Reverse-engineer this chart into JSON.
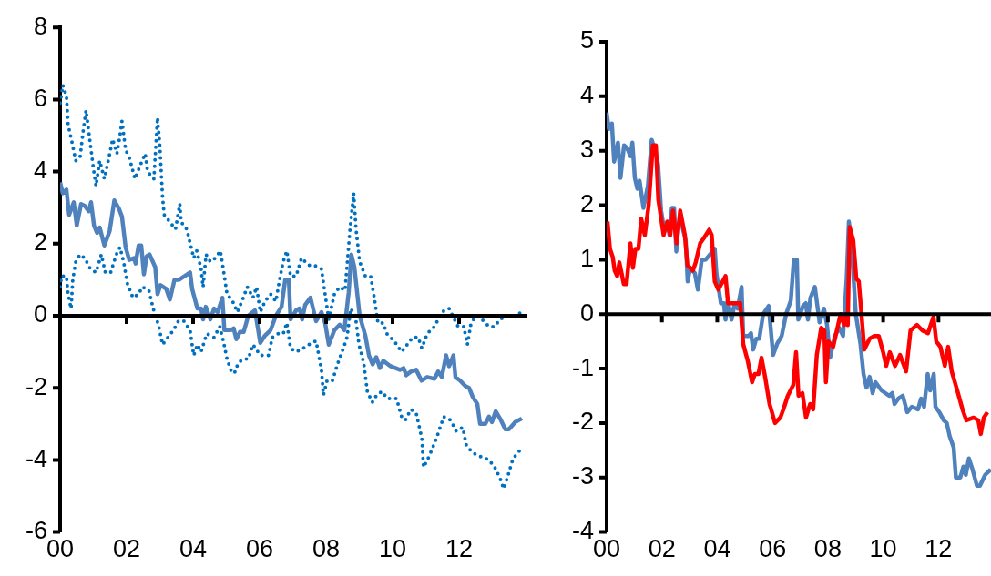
{
  "chart_data": [
    {
      "type": "line",
      "xlim": [
        2000,
        2014
      ],
      "xticks": [
        {
          "value": 2000,
          "label": "00"
        },
        {
          "value": 2002,
          "label": "02"
        },
        {
          "value": 2004,
          "label": "04"
        },
        {
          "value": 2006,
          "label": "06"
        },
        {
          "value": 2008,
          "label": "08"
        },
        {
          "value": 2010,
          "label": "10"
        },
        {
          "value": 2012,
          "label": "12"
        }
      ],
      "ylim": [
        -6,
        8
      ],
      "yticks": [
        -6,
        -4,
        -2,
        0,
        2,
        4,
        6,
        8
      ],
      "ref_lines": [
        {
          "axis": "y",
          "value": 0,
          "color": "#000000"
        }
      ],
      "grid": false,
      "legend": false,
      "marker": "none",
      "series": [
        {
          "color": "#0070c0",
          "line_style": "dotted",
          "x": [
            2000,
            2000.08,
            2000.19,
            2000.24,
            2000.36,
            2000.47,
            2000.6,
            2000.69,
            2000.78,
            2000.89,
            2001,
            2001.08,
            2001.19,
            2001.33,
            2001.47,
            2001.58,
            2001.71,
            2001.8,
            2001.86,
            2001.97,
            2002.08,
            2002.25,
            2002.42,
            2002.56,
            2002.63,
            2002.82,
            2002.93,
            2003,
            2003.08,
            2003.13,
            2003.3,
            2003.47,
            2003.6,
            2003.64,
            2003.81,
            2003.94,
            2004.02,
            2004.11,
            2004.24,
            2004.3,
            2004.39,
            2004.52,
            2004.67,
            2004.82,
            2004.94,
            2005.02,
            2005.19,
            2005.33,
            2005.47,
            2005.63,
            2005.8,
            2005.91,
            2006.02,
            2006.16,
            2006.33,
            2006.49,
            2006.6,
            2006.71,
            2006.82,
            2006.93,
            2007.1,
            2007.26,
            2007.48,
            2007.64,
            2007.86,
            2007.97,
            2008.08,
            2008.25,
            2008.41,
            2008.57,
            2008.72,
            2008.83,
            2008.9,
            2009.01,
            2009.18,
            2009.34,
            2009.45,
            2009.56,
            2009.72,
            2009.83,
            2010.05,
            2010.27,
            2010.44,
            2010.6,
            2010.77,
            2010.88,
            2011.04,
            2011.26,
            2011.48,
            2011.7,
            2011.86,
            2011.97,
            2012.14,
            2012.25,
            2012.36,
            2012.52,
            2012.69,
            2012.9,
            2013.07,
            2013.23,
            2013.45,
            2013.67,
            2013.89
          ],
          "values": [
            5.9,
            6.4,
            6.1,
            5.3,
            4.8,
            4.3,
            4.4,
            5.1,
            5.7,
            4.9,
            4.1,
            3.6,
            4.3,
            3.8,
            4.4,
            4.9,
            4.5,
            5,
            5.4,
            4.6,
            4.4,
            3.8,
            4.2,
            4.5,
            4,
            3.8,
            5.5,
            4.7,
            3.3,
            2.8,
            2.6,
            2.4,
            3.1,
            2.6,
            2.4,
            1.9,
            1.6,
            1.8,
            1.3,
            0.8,
            1.7,
            1.5,
            1.6,
            1.8,
            1.1,
            0.6,
            0.4,
            0.1,
            0.4,
            0.8,
            0.5,
            0.8,
            0.1,
            0.4,
            0.6,
            0.4,
            1,
            1.5,
            1.8,
            1.1,
            1.1,
            1.6,
            1.4,
            1.4,
            1.3,
            0.6,
            -0.1,
            0.6,
            0.8,
            0.7,
            2.4,
            3.4,
            2.4,
            1.5,
            1.1,
            1.1,
            0.5,
            -0.2,
            -0.2,
            -0.5,
            -0.7,
            -1,
            -0.8,
            -0.6,
            -0.6,
            -0.9,
            -0.5,
            -0.3,
            0.1,
            0.2,
            -0.1,
            -0.3,
            -0.3,
            -0.8,
            -0.2,
            0,
            -0.1,
            -0.3,
            -0.3,
            -0.1,
            0,
            0,
            0.1
          ]
        },
        {
          "color": "#4f81bd",
          "line_style": "solid",
          "x": [
            2000,
            2000.08,
            2000.19,
            2000.27,
            2000.41,
            2000.5,
            2000.63,
            2000.74,
            2000.86,
            2000.93,
            2001.02,
            2001.11,
            2001.19,
            2001.33,
            2001.49,
            2001.63,
            2001.78,
            2001.86,
            2001.97,
            2002.08,
            2002.22,
            2002.27,
            2002.36,
            2002.44,
            2002.52,
            2002.6,
            2002.69,
            2002.86,
            2002.93,
            2003.02,
            2003.19,
            2003.3,
            2003.44,
            2003.58,
            2003.91,
            2003.97,
            2004.13,
            2004.24,
            2004.3,
            2004.38,
            2004.52,
            2004.63,
            2004.74,
            2004.88,
            2004.94,
            2005.13,
            2005.22,
            2005.3,
            2005.41,
            2005.52,
            2005.66,
            2005.86,
            2006.02,
            2006.16,
            2006.33,
            2006.49,
            2006.66,
            2006.77,
            2006.88,
            2006.93,
            2007.1,
            2007.2,
            2007.28,
            2007.37,
            2007.53,
            2007.7,
            2007.86,
            2007.97,
            2008.08,
            2008.25,
            2008.41,
            2008.55,
            2008.68,
            2008.76,
            2008.85,
            2009.01,
            2009.18,
            2009.29,
            2009.4,
            2009.51,
            2009.62,
            2009.72,
            2009.94,
            2010.22,
            2010.33,
            2010.41,
            2010.55,
            2010.71,
            2010.87,
            2011.04,
            2011.26,
            2011.37,
            2011.48,
            2011.61,
            2011.7,
            2011.83,
            2011.89,
            2012.03,
            2012.19,
            2012.3,
            2012.41,
            2012.55,
            2012.63,
            2012.79,
            2012.9,
            2012.99,
            2013.1,
            2013.23,
            2013.39,
            2013.5,
            2013.69,
            2013.89
          ],
          "values": [
            3.7,
            3.4,
            3.5,
            2.8,
            3.15,
            2.5,
            3.1,
            3.05,
            2.9,
            3.15,
            2.5,
            2.3,
            2.45,
            1.95,
            2.35,
            3.2,
            2.95,
            2.75,
            1.9,
            1.55,
            1.6,
            1.45,
            1.95,
            1.95,
            1.15,
            1.65,
            1.7,
            1.35,
            0.6,
            0.85,
            0.75,
            0.45,
            1,
            1,
            1.2,
            0.75,
            0.2,
            0.2,
            -0.1,
            0.25,
            -0.1,
            0.2,
            0.1,
            0.5,
            -0.4,
            -0.4,
            -0.35,
            -0.65,
            -0.45,
            -0.45,
            0,
            0.15,
            -0.75,
            -0.55,
            -0.4,
            0,
            0.25,
            1,
            1,
            -0.1,
            0.15,
            0.2,
            -0.1,
            0.3,
            0.5,
            -0.15,
            0.1,
            -0.2,
            -0.8,
            -0.4,
            -0.25,
            -0.4,
            0.65,
            1.7,
            1.35,
            0,
            -0.55,
            -1.1,
            -1.35,
            -1.15,
            -1.45,
            -1.25,
            -1.4,
            -1.5,
            -1.45,
            -1.65,
            -1.55,
            -1.5,
            -1.8,
            -1.7,
            -1.75,
            -1.55,
            -1.7,
            -1.1,
            -1.4,
            -1.1,
            -1.7,
            -1.8,
            -1.95,
            -2,
            -2.25,
            -2.45,
            -3,
            -3,
            -2.8,
            -2.95,
            -2.65,
            -2.85,
            -3.15,
            -3.15,
            -2.95,
            -2.85
          ]
        },
        {
          "color": "#0070c0",
          "line_style": "dotted",
          "x": [
            2000,
            2000.04,
            2000.19,
            2000.24,
            2000.33,
            2000.38,
            2000.47,
            2000.6,
            2000.74,
            2000.91,
            2001.08,
            2001.24,
            2001.36,
            2001.52,
            2001.69,
            2001.8,
            2001.91,
            2002.02,
            2002.19,
            2002.36,
            2002.47,
            2002.67,
            2002.8,
            2002.97,
            2003.08,
            2003.24,
            2003.41,
            2003.64,
            2003.75,
            2003.91,
            2003.97,
            2004.02,
            2004.13,
            2004.24,
            2004.41,
            2004.63,
            2004.8,
            2004.91,
            2005.02,
            2005.13,
            2005.24,
            2005.36,
            2005.52,
            2005.66,
            2005.8,
            2006.02,
            2006.11,
            2006.27,
            2006.38,
            2006.55,
            2006.71,
            2006.82,
            2006.93,
            2007.1,
            2007.31,
            2007.48,
            2007.7,
            2007.86,
            2007.92,
            2008.03,
            2008.19,
            2008.36,
            2008.52,
            2008.63,
            2008.74,
            2008.88,
            2008.99,
            2009.13,
            2009.24,
            2009.39,
            2009.52,
            2009.68,
            2009.85,
            2010.12,
            2010.27,
            2010.38,
            2010.55,
            2010.71,
            2010.88,
            2010.93,
            2011.1,
            2011.32,
            2011.54,
            2011.75,
            2011.91,
            2012.11,
            2012.22,
            2012.41,
            2012.63,
            2012.9,
            2013.07,
            2013.23,
            2013.34,
            2013.45,
            2013.61,
            2013.75,
            2013.89
          ],
          "values": [
            0.8,
            1.1,
            1.1,
            0.6,
            0.2,
            1,
            1.5,
            1.7,
            1.6,
            1.3,
            1.2,
            1.7,
            1.2,
            1.2,
            1.7,
            1.9,
            1.5,
            0.9,
            0.5,
            0.6,
            0.8,
            0.7,
            0.2,
            -0.3,
            -0.8,
            -0.6,
            -0.4,
            0,
            -0.2,
            -0.4,
            -0.8,
            -1.1,
            -0.8,
            -1,
            -0.5,
            -0.6,
            -0.3,
            -0.7,
            -1.2,
            -1.5,
            -1.6,
            -1.3,
            -1.2,
            -1.2,
            -0.8,
            -1.1,
            -1.1,
            -1.1,
            -0.6,
            -0.5,
            -0.5,
            -0.2,
            -0.9,
            -1,
            -0.9,
            -0.8,
            -0.7,
            -1.5,
            -2.2,
            -1.8,
            -1.8,
            -1.3,
            -0.9,
            -0.6,
            0.2,
            0,
            -0.8,
            -1.3,
            -2.1,
            -2.4,
            -2.2,
            -2.1,
            -2.3,
            -2.3,
            -2.8,
            -2.9,
            -2.6,
            -2.7,
            -3.4,
            -4.2,
            -3.9,
            -3.4,
            -2.8,
            -2.9,
            -3.2,
            -3.1,
            -3.6,
            -3.8,
            -3.9,
            -4,
            -4.2,
            -4.5,
            -4.8,
            -4.5,
            -4,
            -3.8,
            -3.7
          ]
        }
      ]
    },
    {
      "type": "line",
      "xlim": [
        2000,
        2013.9
      ],
      "xticks": [
        {
          "value": 2000,
          "label": "00"
        },
        {
          "value": 2002,
          "label": "02"
        },
        {
          "value": 2004,
          "label": "04"
        },
        {
          "value": 2006,
          "label": "06"
        },
        {
          "value": 2008,
          "label": "08"
        },
        {
          "value": 2010,
          "label": "10"
        },
        {
          "value": 2012,
          "label": "12"
        }
      ],
      "ylim": [
        -4,
        5
      ],
      "yticks": [
        -4,
        -3,
        -2,
        -1,
        0,
        1,
        2,
        3,
        4,
        5
      ],
      "ref_lines": [
        {
          "axis": "y",
          "value": 0,
          "color": "#000000"
        }
      ],
      "grid": false,
      "legend": false,
      "marker": "none",
      "series": [
        {
          "color": "#4f81bd",
          "line_style": "solid",
          "x": [
            2000,
            2000.08,
            2000.19,
            2000.27,
            2000.41,
            2000.5,
            2000.63,
            2000.74,
            2000.86,
            2000.93,
            2001.02,
            2001.11,
            2001.19,
            2001.33,
            2001.49,
            2001.63,
            2001.78,
            2001.86,
            2001.97,
            2002.08,
            2002.22,
            2002.27,
            2002.36,
            2002.44,
            2002.52,
            2002.6,
            2002.69,
            2002.86,
            2002.93,
            2003.02,
            2003.19,
            2003.3,
            2003.44,
            2003.58,
            2003.91,
            2003.97,
            2004.13,
            2004.24,
            2004.3,
            2004.38,
            2004.52,
            2004.63,
            2004.74,
            2004.88,
            2004.94,
            2005.13,
            2005.22,
            2005.3,
            2005.41,
            2005.52,
            2005.66,
            2005.86,
            2006.02,
            2006.16,
            2006.33,
            2006.49,
            2006.66,
            2006.77,
            2006.88,
            2006.93,
            2007.1,
            2007.2,
            2007.28,
            2007.37,
            2007.53,
            2007.7,
            2007.86,
            2007.97,
            2008.08,
            2008.25,
            2008.41,
            2008.55,
            2008.68,
            2008.76,
            2008.85,
            2009.01,
            2009.18,
            2009.29,
            2009.4,
            2009.51,
            2009.62,
            2009.72,
            2009.94,
            2010.22,
            2010.33,
            2010.41,
            2010.55,
            2010.71,
            2010.87,
            2011.04,
            2011.26,
            2011.37,
            2011.48,
            2011.61,
            2011.7,
            2011.83,
            2011.89,
            2012.03,
            2012.19,
            2012.3,
            2012.41,
            2012.55,
            2012.63,
            2012.79,
            2012.9,
            2012.99,
            2013.1,
            2013.23,
            2013.39,
            2013.5,
            2013.69,
            2013.89
          ],
          "values": [
            3.7,
            3.4,
            3.5,
            2.8,
            3.15,
            2.5,
            3.1,
            3.05,
            2.9,
            3.15,
            2.5,
            2.3,
            2.45,
            1.95,
            2.35,
            3.2,
            2.95,
            2.75,
            1.9,
            1.55,
            1.6,
            1.45,
            1.95,
            1.95,
            1.15,
            1.65,
            1.7,
            1.35,
            0.6,
            0.85,
            0.75,
            0.45,
            1,
            1,
            1.2,
            0.75,
            0.2,
            0.2,
            -0.1,
            0.25,
            -0.1,
            0.2,
            0.1,
            0.5,
            -0.4,
            -0.4,
            -0.35,
            -0.65,
            -0.45,
            -0.45,
            0,
            0.15,
            -0.75,
            -0.55,
            -0.4,
            0,
            0.25,
            1,
            1,
            -0.1,
            0.15,
            0.2,
            -0.1,
            0.3,
            0.5,
            -0.15,
            0.1,
            -0.2,
            -0.8,
            -0.4,
            -0.25,
            -0.4,
            0.65,
            1.7,
            1.35,
            0,
            -0.55,
            -1.1,
            -1.35,
            -1.15,
            -1.45,
            -1.25,
            -1.4,
            -1.5,
            -1.45,
            -1.65,
            -1.55,
            -1.5,
            -1.8,
            -1.7,
            -1.75,
            -1.55,
            -1.7,
            -1.1,
            -1.4,
            -1.1,
            -1.7,
            -1.8,
            -1.95,
            -2,
            -2.25,
            -2.45,
            -3,
            -3,
            -2.8,
            -2.95,
            -2.65,
            -2.85,
            -3.15,
            -3.15,
            -2.95,
            -2.85
          ]
        },
        {
          "color": "#ff0000",
          "line_style": "solid",
          "x": [
            2000.03,
            2000.12,
            2000.22,
            2000.29,
            2000.38,
            2000.46,
            2000.62,
            2000.72,
            2000.86,
            2000.95,
            2001.04,
            2001.15,
            2001.25,
            2001.38,
            2001.52,
            2001.67,
            2001.78,
            2001.87,
            2002.06,
            2002.19,
            2002.3,
            2002.4,
            2002.53,
            2002.66,
            2002.83,
            2002.92,
            2003.12,
            2003.22,
            2003.38,
            2003.52,
            2003.71,
            2003.8,
            2003.91,
            2004.04,
            2004.3,
            2004.39,
            2004.56,
            2004.83,
            2004.94,
            2005.1,
            2005.26,
            2005.36,
            2005.49,
            2005.6,
            2005.73,
            2005.89,
            2006.09,
            2006.28,
            2006.39,
            2006.55,
            2006.75,
            2006.85,
            2006.94,
            2007.08,
            2007.21,
            2007.36,
            2007.47,
            2007.6,
            2007.76,
            2007.87,
            2007.93,
            2008.02,
            2008.19,
            2008.46,
            2008.59,
            2008.66,
            2008.72,
            2008.79,
            2008.92,
            2009.03,
            2009.12,
            2009.32,
            2009.51,
            2009.68,
            2009.84,
            2010,
            2010.11,
            2010.24,
            2010.43,
            2010.61,
            2010.83,
            2010.99,
            2011.22,
            2011.42,
            2011.62,
            2011.82,
            2011.92,
            2012.07,
            2012.23,
            2012.35,
            2012.48,
            2012.68,
            2012.87,
            2013.01,
            2013.27,
            2013.44,
            2013.53,
            2013.64,
            2013.77
          ],
          "values": [
            1.7,
            1.2,
            1.05,
            0.8,
            0.7,
            0.95,
            0.55,
            0.55,
            1.3,
            0.85,
            1.2,
            1.2,
            1.75,
            1.45,
            2,
            3.1,
            3.1,
            2.1,
            1.45,
            1.7,
            1.45,
            1.9,
            1.3,
            1.9,
            1.45,
            0.9,
            0.8,
            0.95,
            1.3,
            1.4,
            1.55,
            1.45,
            0.6,
            0.45,
            0.7,
            0.2,
            0.2,
            0.2,
            -0.55,
            -0.85,
            -1.25,
            -1.1,
            -1.1,
            -0.8,
            -1.15,
            -1.65,
            -2,
            -1.9,
            -1.75,
            -1.5,
            -1.3,
            -0.7,
            -1.5,
            -1.45,
            -1.9,
            -1.65,
            -1.75,
            -0.75,
            -0.25,
            -0.3,
            -1.25,
            -0.5,
            -0.6,
            0,
            -0.2,
            0,
            -0.2,
            1.6,
            1.35,
            0.65,
            0.6,
            -0.65,
            -0.45,
            -0.4,
            -0.4,
            -0.7,
            -0.95,
            -0.7,
            -0.95,
            -0.75,
            -1.05,
            -0.3,
            -0.2,
            -0.3,
            -0.35,
            -0.05,
            -0.5,
            -0.6,
            -0.95,
            -0.6,
            -1.05,
            -1.4,
            -1.75,
            -1.95,
            -1.9,
            -1.95,
            -2.2,
            -1.9,
            -1.8
          ]
        }
      ]
    }
  ]
}
